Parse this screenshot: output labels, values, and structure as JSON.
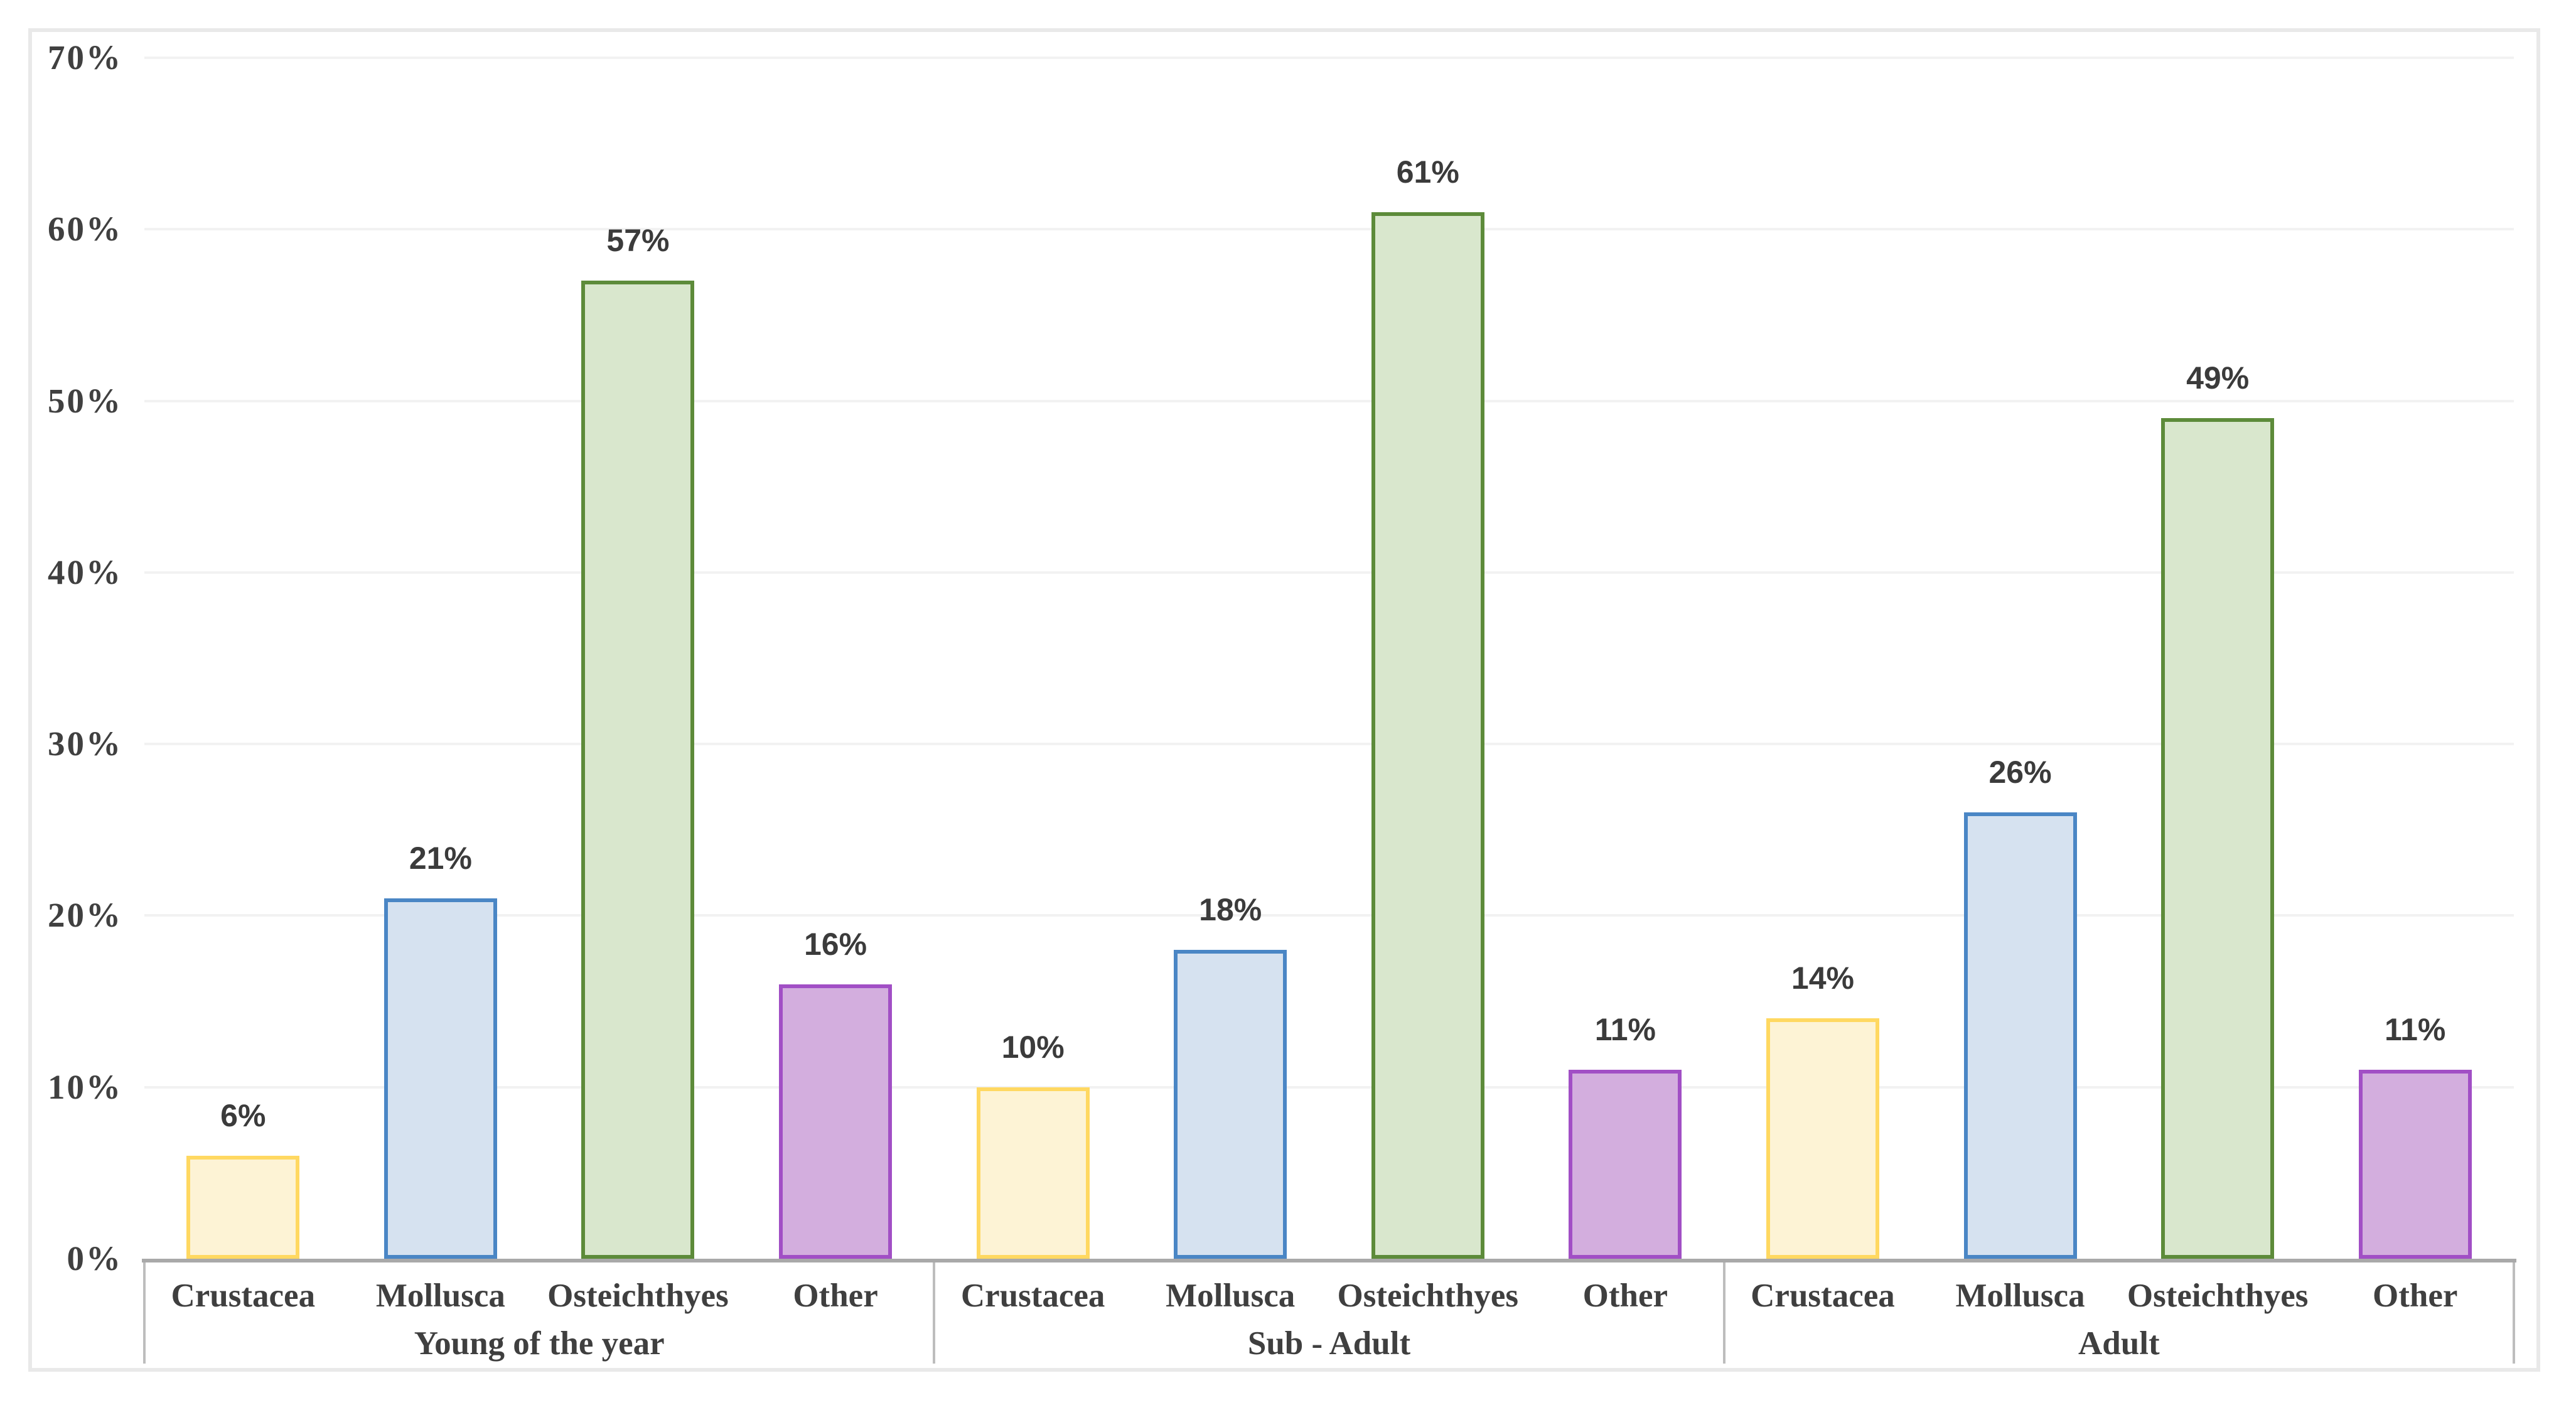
{
  "chart_data": {
    "type": "bar",
    "title": "",
    "xlabel": "",
    "ylabel": "",
    "ylim": [
      0,
      70
    ],
    "y_tick_step": 10,
    "y_tick_suffix": "%",
    "y_tick_labels": [
      "0%",
      "10%",
      "20%",
      "30%",
      "40%",
      "50%",
      "60%",
      "70%"
    ],
    "grid": true,
    "legend": false,
    "data_label_suffix": "%",
    "categories_per_group": [
      "Crustacea",
      "Mollusca",
      "Osteichthyes",
      "Other"
    ],
    "groups": [
      {
        "label": "Young of the year",
        "values": [
          6,
          21,
          57,
          16
        ]
      },
      {
        "label": "Sub - Adult",
        "values": [
          10,
          18,
          61,
          11
        ]
      },
      {
        "label": "Adult",
        "values": [
          14,
          26,
          49,
          11
        ]
      }
    ],
    "series_styles": [
      {
        "category": "Crustacea",
        "fill": "#fdf3d5",
        "border": "#ffd861"
      },
      {
        "category": "Mollusca",
        "fill": "#d6e2f0",
        "border": "#4a86c5"
      },
      {
        "category": "Osteichthyes",
        "fill": "#d9e7cd",
        "border": "#5d8b3a"
      },
      {
        "category": "Other",
        "fill": "#d3aede",
        "border": "#a14fc5"
      }
    ],
    "style_colors": {
      "gridline": "#f2f2f2",
      "axis_line": "#a9a9a9",
      "table_divider": "#bdbdbd",
      "figure_border": "#e9e9e9",
      "tick_text": "#404040",
      "data_label_text": "#3b3b3b",
      "background": "#ffffff"
    }
  }
}
